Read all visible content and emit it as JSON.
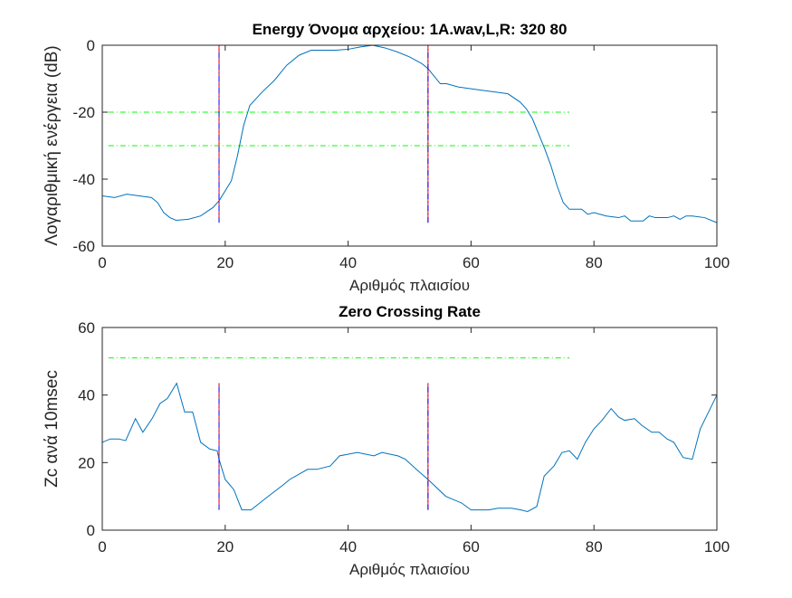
{
  "chart_data": [
    {
      "type": "line",
      "title": "Energy Όνομα αρχείου: 1A.wav,L,R: 320 80",
      "xlabel": "Αριθμός πλαισίου",
      "ylabel": "Λογαριθμική ενέργεια (dB)",
      "x": [
        0,
        2,
        4,
        6,
        8,
        9,
        10,
        11,
        12,
        14,
        16,
        18,
        19,
        21,
        22,
        23,
        24,
        26,
        28,
        30,
        32,
        34,
        36,
        38,
        40,
        42,
        44,
        46,
        48,
        50,
        52,
        53,
        55,
        56,
        58,
        60,
        62,
        64,
        66,
        68,
        69,
        70,
        72,
        73,
        74,
        75,
        76,
        78,
        79,
        80,
        82,
        84,
        85,
        86,
        88,
        89,
        90,
        92,
        93,
        94,
        95,
        96,
        98,
        100
      ],
      "series": [
        {
          "color": "#0072bd",
          "values": [
            -45,
            -45.5,
            -44.5,
            -45,
            -45.5,
            -47,
            -50,
            -51.5,
            -52.3,
            -52,
            -51,
            -48.5,
            -46.5,
            -40.5,
            -33,
            -24,
            -18,
            -14,
            -10.5,
            -6,
            -3,
            -1.5,
            -1.5,
            -1.5,
            -1.2,
            -0.5,
            0,
            -0.8,
            -2,
            -3.5,
            -5.5,
            -7,
            -11.5,
            -11.5,
            -12.5,
            -13,
            -13.5,
            -14,
            -14.5,
            -17,
            -19,
            -22,
            -31,
            -36,
            -42,
            -47,
            -49,
            -49,
            -50.5,
            -50,
            -51,
            -51.5,
            -51,
            -52.5,
            -52.5,
            -51,
            -51.5,
            -51.5,
            -51,
            -52,
            -51,
            -51,
            -51.5,
            -53
          ]
        }
      ],
      "markers": {
        "x": [
          19,
          53
        ],
        "y_range": [
          -53,
          0
        ],
        "colors": [
          "#ff0000",
          "#0000ff"
        ]
      },
      "thresholds": {
        "y": [
          -20,
          -30
        ],
        "x_range": [
          1,
          76
        ],
        "color": "#00ff00"
      },
      "xlim": [
        0,
        100
      ],
      "xticks": [
        0,
        20,
        40,
        60,
        80,
        100
      ],
      "ylim": [
        -60,
        0
      ],
      "yticks": [
        -60,
        -40,
        -20,
        0
      ]
    },
    {
      "type": "line",
      "title": "Zero Crossing Rate",
      "xlabel": "Αριθμός πλαισίου",
      "ylabel": "Zc ανά 10msec",
      "x": [
        0,
        1.3,
        2.7,
        3.8,
        5.4,
        6.6,
        8.1,
        9.4,
        10.6,
        12.1,
        13.4,
        14.7,
        16,
        17.5,
        18.7,
        19,
        20,
        21.4,
        22.7,
        24.2,
        25.6,
        27,
        29.5,
        30.5,
        33.4,
        34.9,
        37.1,
        38.6,
        41.5,
        44.2,
        45.5,
        48.1,
        49.3,
        51.1,
        53,
        55.9,
        58.5,
        60,
        62.9,
        64.4,
        66.6,
        68.1,
        69.2,
        70.7,
        71.9,
        73.5,
        74.8,
        76,
        77.3,
        78.6,
        80,
        81.3,
        82.8,
        84,
        85,
        86.6,
        87.8,
        89.4,
        90.6,
        91.9,
        93,
        94.5,
        96,
        97.3,
        100
      ],
      "series": [
        {
          "color": "#0072bd",
          "values": [
            26,
            27,
            27,
            26.5,
            33,
            29,
            33,
            37.5,
            39,
            43.5,
            35,
            35,
            26,
            24,
            23.5,
            21,
            15,
            12,
            6,
            6,
            8,
            10,
            13.5,
            15,
            18,
            18,
            19,
            22,
            23,
            22,
            23,
            22,
            21,
            18,
            15,
            10,
            8,
            6,
            6,
            6.5,
            6.5,
            6,
            5.5,
            7,
            16,
            19,
            23,
            23.5,
            21,
            26,
            30,
            32.5,
            36,
            33.5,
            32.5,
            33,
            31,
            29,
            29,
            27,
            26,
            21.5,
            21,
            30,
            40
          ]
        }
      ],
      "markers": {
        "x": [
          19,
          53
        ],
        "y_range": [
          6,
          43.5
        ],
        "colors": [
          "#ff0000",
          "#0000ff"
        ]
      },
      "thresholds": {
        "y": [
          51
        ],
        "x_range": [
          1,
          76
        ],
        "color": "#00ff00"
      },
      "xlim": [
        0,
        100
      ],
      "xticks": [
        0,
        20,
        40,
        60,
        80,
        100
      ],
      "ylim": [
        0,
        60
      ],
      "yticks": [
        0,
        20,
        40,
        60
      ]
    }
  ]
}
